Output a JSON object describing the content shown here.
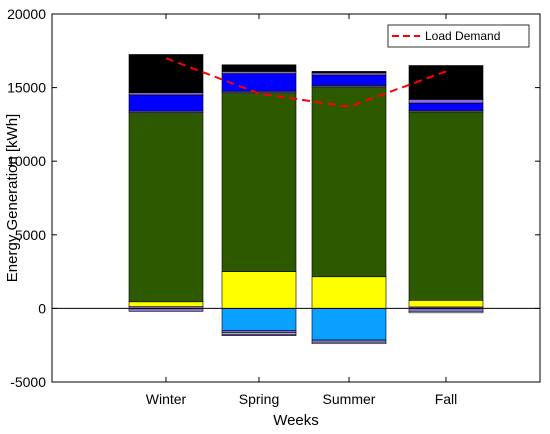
{
  "chart_data": {
    "type": "bar",
    "stacked": true,
    "categories": [
      "Winter",
      "Spring",
      "Summer",
      "Fall"
    ],
    "xlabel": "Weeks",
    "ylabel": "Energy Generation [kWh]",
    "ylim": [
      -5000,
      20000
    ],
    "yticks": [
      -5000,
      0,
      5000,
      10000,
      15000,
      20000
    ],
    "grid": false,
    "legend_position": "top-right",
    "colors": {
      "green": "#2d5a00",
      "yellow": "#ffff00",
      "purple": "#8a6fd8",
      "blue": "#0000ff",
      "black": "#000000",
      "skyblue": "#0aa0ff",
      "lightblue": "#d8f6fb",
      "demand": "#ff0000"
    },
    "positive_stacks": [
      [
        {
          "color": "purple",
          "value": 120
        },
        {
          "color": "yellow",
          "value": 330
        },
        {
          "color": "green",
          "value": 12850
        },
        {
          "color": "purple",
          "value": 100
        },
        {
          "color": "blue",
          "value": 1100
        },
        {
          "color": "purple",
          "value": 150
        },
        {
          "color": "black",
          "value": 2600
        }
      ],
      [
        {
          "color": "yellow",
          "value": 2500
        },
        {
          "color": "green",
          "value": 12150
        },
        {
          "color": "purple",
          "value": 100
        },
        {
          "color": "blue",
          "value": 1200
        },
        {
          "color": "purple",
          "value": 150
        },
        {
          "color": "black",
          "value": 450
        }
      ],
      [
        {
          "color": "yellow",
          "value": 2150
        },
        {
          "color": "green",
          "value": 12900
        },
        {
          "color": "purple",
          "value": 100
        },
        {
          "color": "blue",
          "value": 700
        },
        {
          "color": "purple",
          "value": 150
        },
        {
          "color": "black",
          "value": 100
        }
      ],
      [
        {
          "color": "purple",
          "value": 100
        },
        {
          "color": "yellow",
          "value": 450
        },
        {
          "color": "green",
          "value": 12800
        },
        {
          "color": "purple",
          "value": 100
        },
        {
          "color": "blue",
          "value": 500
        },
        {
          "color": "purple",
          "value": 250
        },
        {
          "color": "black",
          "value": 2300
        }
      ]
    ],
    "negative_stacks": [
      [
        {
          "color": "purple",
          "value": 200
        }
      ],
      [
        {
          "color": "skyblue",
          "value": 1500
        },
        {
          "color": "purple",
          "value": 150
        },
        {
          "color": "lightblue",
          "value": 100
        },
        {
          "color": "purple",
          "value": 100
        }
      ],
      [
        {
          "color": "skyblue",
          "value": 2150
        },
        {
          "color": "purple",
          "value": 150
        },
        {
          "color": "lightblue",
          "value": 100
        }
      ],
      [
        {
          "color": "purple",
          "value": 200
        },
        {
          "color": "lightblue",
          "value": 100
        }
      ]
    ],
    "series": [
      {
        "name": "Load Demand",
        "type": "line",
        "style": "dashed",
        "color": "demand",
        "values": [
          17000,
          14600,
          13700,
          16100
        ]
      }
    ]
  }
}
